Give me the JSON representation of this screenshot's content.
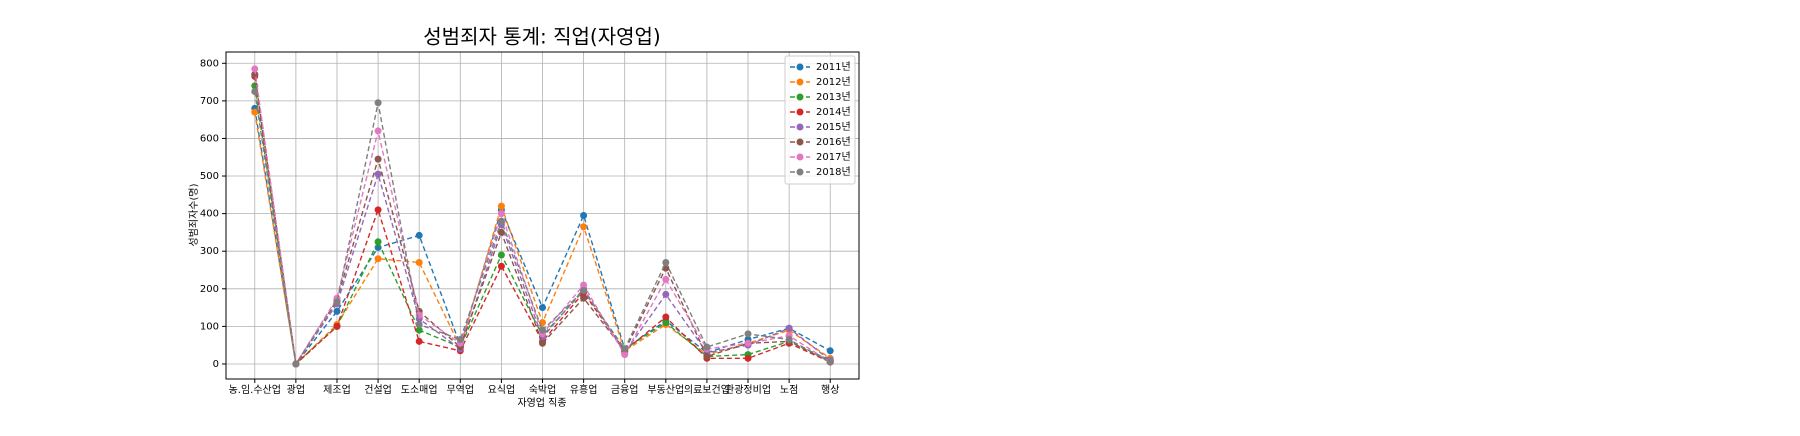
{
  "chart_data": {
    "type": "line",
    "title": "성범죄자 통계: 직업(자영업)",
    "xlabel": "자영업 직종",
    "ylabel": "성범죄자수(명)",
    "categories": [
      "농.임.수산업",
      "광업",
      "제조업",
      "건설업",
      "도소매업",
      "무역업",
      "요식업",
      "숙박업",
      "유흥업",
      "금융업",
      "부동산업",
      "의료보건업",
      "관광정비업",
      "노점",
      "행상"
    ],
    "ylim": [
      -40,
      830
    ],
    "yticks": [
      0,
      100,
      200,
      300,
      400,
      500,
      600,
      700,
      800
    ],
    "grid": true,
    "legend": "upper right",
    "series": [
      {
        "name": "2011년",
        "color": "#1f77b4",
        "values": [
          680,
          0,
          140,
          310,
          342,
          50,
          410,
          150,
          395,
          40,
          115,
          30,
          65,
          95,
          35
        ]
      },
      {
        "name": "2012년",
        "color": "#ff7f0e",
        "values": [
          670,
          0,
          105,
          280,
          270,
          45,
          420,
          110,
          365,
          35,
          105,
          25,
          55,
          90,
          15
        ]
      },
      {
        "name": "2013년",
        "color": "#2ca02c",
        "values": [
          740,
          0,
          100,
          325,
          90,
          45,
          290,
          75,
          195,
          40,
          110,
          20,
          25,
          60,
          10
        ]
      },
      {
        "name": "2014년",
        "color": "#d62728",
        "values": [
          765,
          0,
          100,
          410,
          60,
          35,
          260,
          60,
          190,
          35,
          125,
          15,
          15,
          55,
          5
        ]
      },
      {
        "name": "2015년",
        "color": "#9467bd",
        "values": [
          770,
          0,
          160,
          505,
          120,
          40,
          370,
          70,
          200,
          30,
          185,
          30,
          50,
          95,
          10
        ]
      },
      {
        "name": "2016년",
        "color": "#8c564b",
        "values": [
          770,
          0,
          170,
          545,
          140,
          45,
          350,
          55,
          175,
          35,
          255,
          20,
          55,
          60,
          5
        ]
      },
      {
        "name": "2017년",
        "color": "#e377c2",
        "values": [
          785,
          0,
          175,
          620,
          130,
          55,
          400,
          80,
          210,
          25,
          225,
          40,
          55,
          75,
          5
        ]
      },
      {
        "name": "2018년",
        "color": "#7f7f7f",
        "values": [
          725,
          0,
          165,
          695,
          105,
          65,
          380,
          90,
          195,
          40,
          270,
          45,
          80,
          65,
          5
        ]
      }
    ]
  }
}
